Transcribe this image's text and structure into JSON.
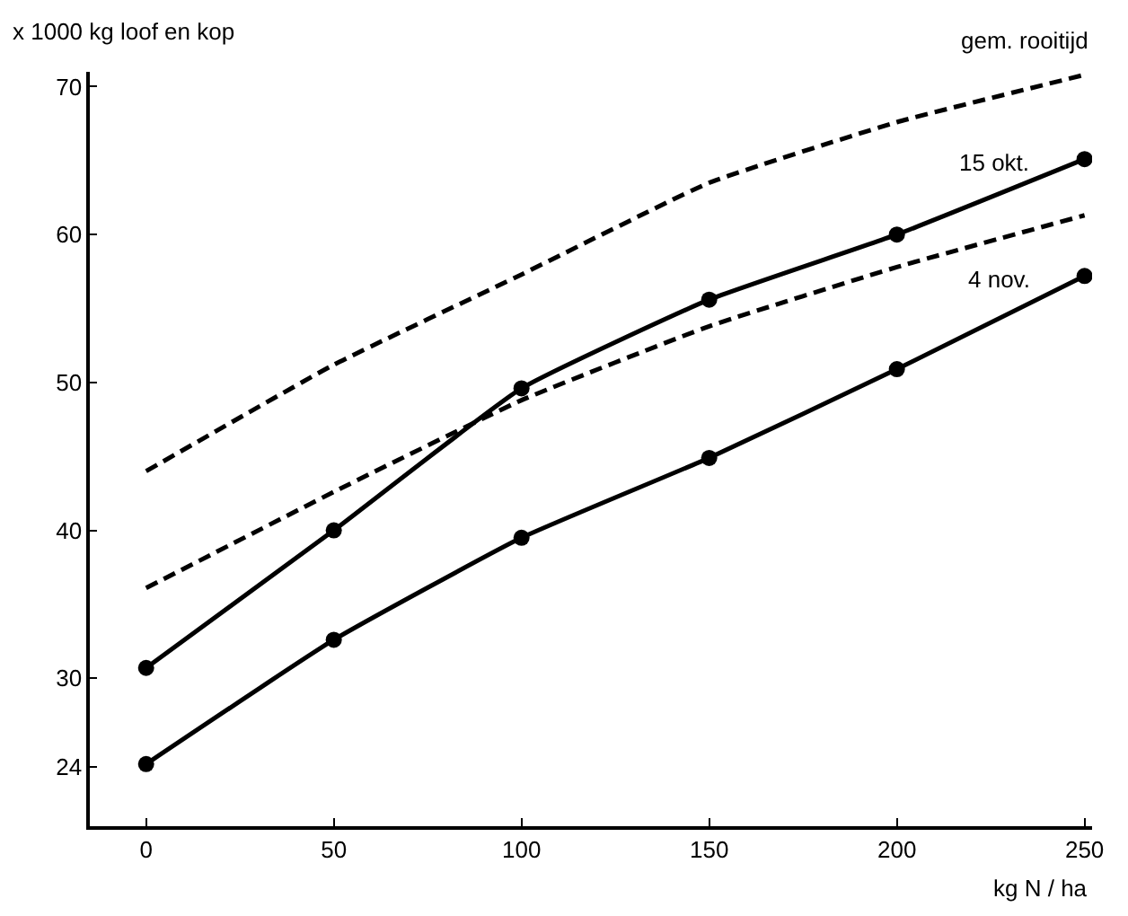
{
  "chart_data": {
    "type": "line",
    "ylabel": "x 1000 kg loof en kop",
    "xlabel": "kg N / ha",
    "x": [
      0,
      50,
      100,
      150,
      200,
      250
    ],
    "series": [
      {
        "color": "#000000",
        "line_style": "dashed",
        "marker": "none",
        "values": [
          44.0,
          51.2,
          57.3,
          63.5,
          67.6,
          70.8
        ]
      },
      {
        "color": "#000000",
        "line_style": "solid",
        "marker": "circle",
        "values": [
          30.7,
          40.0,
          49.6,
          55.6,
          60.0,
          65.1
        ]
      },
      {
        "color": "#000000",
        "line_style": "dashed",
        "marker": "none",
        "values": [
          36.1,
          42.6,
          48.8,
          53.8,
          57.8,
          61.3
        ]
      },
      {
        "color": "#000000",
        "line_style": "solid",
        "marker": "circle",
        "values": [
          24.2,
          32.6,
          39.5,
          44.9,
          50.9,
          57.2
        ]
      }
    ],
    "annotations": [
      "gem. rooitijd",
      "15 okt.",
      "4 nov."
    ],
    "xlim": [
      -15,
      252
    ],
    "xticks": [
      0,
      50,
      100,
      150,
      200,
      250
    ],
    "ylim": [
      20,
      71
    ],
    "yticks": [
      24,
      30,
      40,
      50,
      60,
      70
    ],
    "grid": false,
    "legend": false
  }
}
